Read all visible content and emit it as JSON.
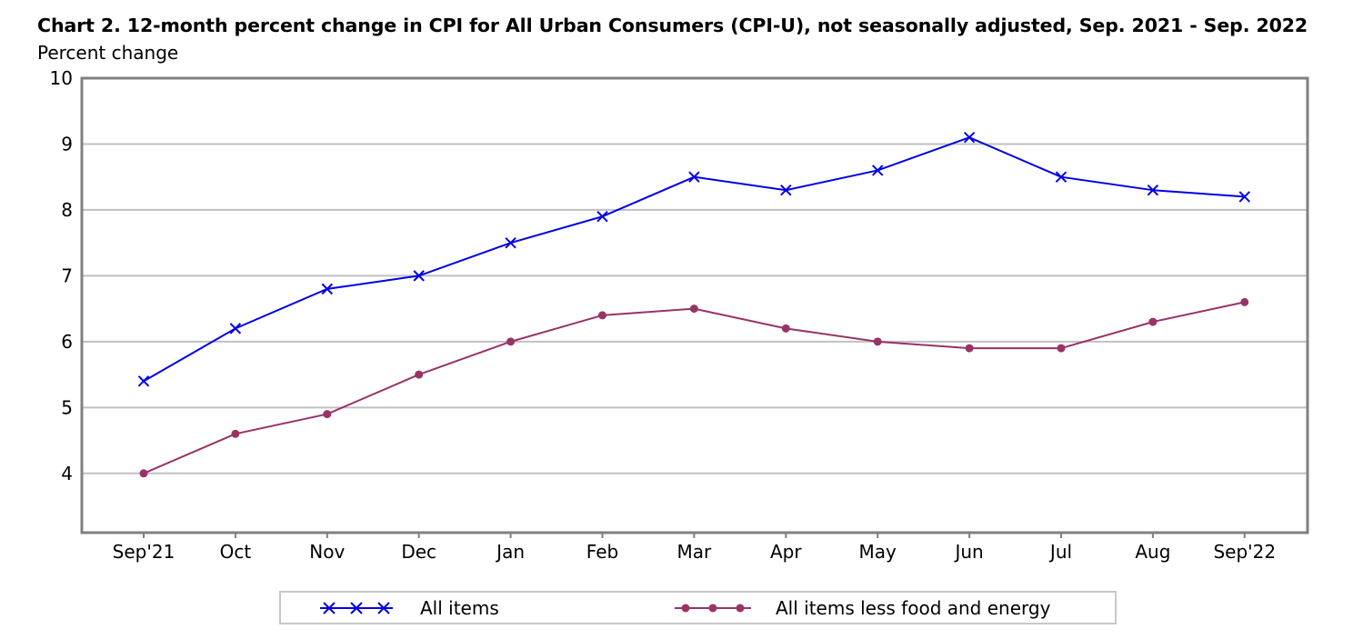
{
  "title": "Chart 2. 12-month percent change in CPI for All Urban Consumers (CPI-U), not seasonally adjusted, Sep. 2021 - Sep. 2022",
  "ylabel": "Percent change",
  "colors": {
    "all_items": "#0000e6",
    "core": "#993366",
    "grid": "#c0c0c0",
    "frame": "#808080"
  },
  "chart_data": {
    "type": "line",
    "title": "Chart 2. 12-month percent change in CPI for All Urban Consumers (CPI-U), not seasonally adjusted, Sep. 2021 - Sep. 2022",
    "xlabel": "",
    "ylabel": "Percent change",
    "ylim": [
      3.1,
      10
    ],
    "yticks": [
      4,
      5,
      6,
      7,
      8,
      9,
      10
    ],
    "grid": true,
    "legend_position": "bottom",
    "categories": [
      "Sep'21",
      "Oct",
      "Nov",
      "Dec",
      "Jan",
      "Feb",
      "Mar",
      "Apr",
      "May",
      "Jun",
      "Jul",
      "Aug",
      "Sep'22"
    ],
    "series": [
      {
        "name": "All items",
        "marker": "x",
        "color": "#0000e6",
        "values": [
          5.4,
          6.2,
          6.8,
          7.0,
          7.5,
          7.9,
          8.5,
          8.3,
          8.6,
          9.1,
          8.5,
          8.3,
          8.2
        ]
      },
      {
        "name": "All items less food and energy",
        "marker": "circle",
        "color": "#993366",
        "values": [
          4.0,
          4.6,
          4.9,
          5.5,
          6.0,
          6.4,
          6.5,
          6.2,
          6.0,
          5.9,
          5.9,
          6.3,
          6.6
        ]
      }
    ]
  }
}
